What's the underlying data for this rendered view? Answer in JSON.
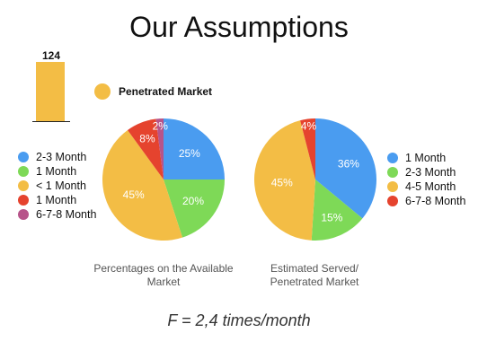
{
  "title": "Our Assumptions",
  "formula": "F = 2,4 times/month",
  "colors": {
    "blue": "#4a9cf0",
    "green": "#7ed957",
    "yellow": "#f3bd45",
    "red": "#e5432e",
    "purple": "#b7548a"
  },
  "chart_data": [
    {
      "type": "bar",
      "categories": [
        ""
      ],
      "values": [
        124
      ],
      "data_labels": [
        "124"
      ],
      "legend": [
        {
          "label": "Penetrated Market",
          "color": "#f3bd45"
        }
      ]
    },
    {
      "type": "pie",
      "caption": "Percentages on the Available Market",
      "slices": [
        {
          "label": "2-3 Month",
          "value": 25,
          "text": "25%",
          "color": "#4a9cf0"
        },
        {
          "label": "1 Month",
          "value": 20,
          "text": "20%",
          "color": "#7ed957"
        },
        {
          "label": "< 1 Month",
          "value": 45,
          "text": "45%",
          "color": "#f3bd45"
        },
        {
          "label": "1 Month",
          "value": 8,
          "text": "8%",
          "color": "#e5432e"
        },
        {
          "label": "6-7-8 Month",
          "value": 2,
          "text": "2%",
          "color": "#b7548a"
        }
      ],
      "legend_placement": "left"
    },
    {
      "type": "pie",
      "caption": "Estimated Served/ Penetrated Market",
      "slices": [
        {
          "label": "1 Month",
          "value": 36,
          "text": "36%",
          "color": "#4a9cf0"
        },
        {
          "label": "2-3 Month",
          "value": 15,
          "text": "15%",
          "color": "#7ed957"
        },
        {
          "label": "4-5 Month",
          "value": 45,
          "text": "45%",
          "color": "#f3bd45"
        },
        {
          "label": "6-7-8 Month",
          "value": 4,
          "text": "4%",
          "color": "#e5432e"
        }
      ],
      "legend_placement": "right"
    }
  ]
}
